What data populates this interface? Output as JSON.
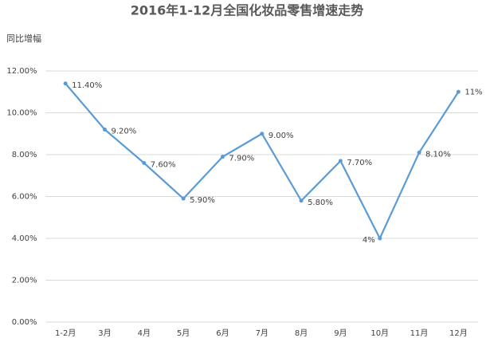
{
  "chart_data": {
    "type": "line",
    "title": "2016年1-12月全国化妆品零售增速走势",
    "y_label": "同比增幅",
    "categories": [
      "1-2月",
      "3月",
      "4月",
      "5月",
      "6月",
      "7月",
      "8月",
      "9月",
      "10月",
      "11月",
      "12月"
    ],
    "series": [
      {
        "color": "#5b9bd5",
        "values": [
          11.4,
          9.2,
          7.6,
          5.9,
          7.9,
          9.0,
          5.8,
          7.7,
          4,
          8.1,
          11
        ],
        "value_labels": [
          "11.40%",
          "9.20%",
          "7.60%",
          "5.90%",
          "7.90%",
          "9.00%",
          "5.80%",
          "7.70%",
          "4%",
          "8.10%",
          "11%"
        ]
      }
    ],
    "ylim": [
      0,
      12
    ],
    "yticks": [
      {
        "value": 0,
        "label": "0.00%"
      },
      {
        "value": 2,
        "label": "2.00%"
      },
      {
        "value": 4,
        "label": "4.00%"
      },
      {
        "value": 6,
        "label": "6.00%"
      },
      {
        "value": 8,
        "label": "8.00%"
      },
      {
        "value": 10,
        "label": "10.00%"
      },
      {
        "value": 12,
        "label": "12.00%"
      }
    ],
    "grid": true
  }
}
